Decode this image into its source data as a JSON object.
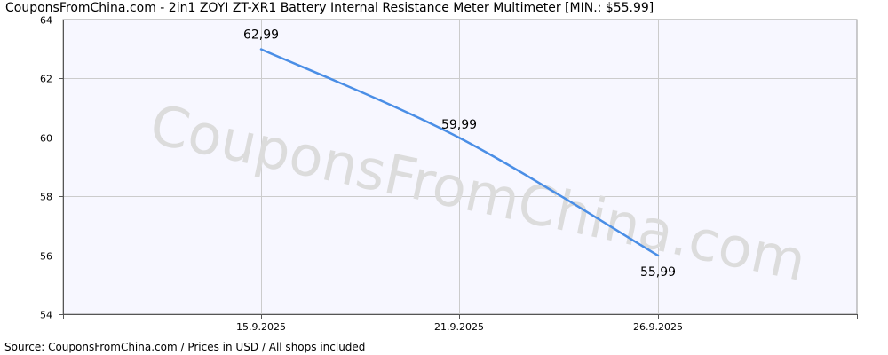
{
  "chart_data": {
    "type": "line",
    "title": "CouponsFromChina.com  -  2in1 ZOYI ZT-XR1 Battery Internal Resistance Meter Multimeter [MIN.: $55.99]",
    "xlabel": "",
    "ylabel": "",
    "x": [
      "15.9.2025",
      "21.9.2025",
      "26.9.2025"
    ],
    "series": [
      {
        "values": [
          62.99,
          59.99,
          55.99
        ],
        "labels": [
          "62,99",
          "59,99",
          "55,99"
        ]
      }
    ],
    "ylim": [
      54,
      64
    ],
    "yticks": [
      54,
      56,
      58,
      60,
      62,
      64
    ],
    "ytick_labels": [
      "54",
      "56",
      "58",
      "60",
      "62",
      "64"
    ],
    "grid": true,
    "watermark": "CouponsFromChina.com",
    "source": "Source:  CouponsFromChina.com / Prices in USD / All shops included",
    "colors": {
      "line": "#4a8ee6",
      "plot_background": "#f7f7ff",
      "grid": "#cccccc",
      "watermark": "#dcdcdc"
    }
  }
}
